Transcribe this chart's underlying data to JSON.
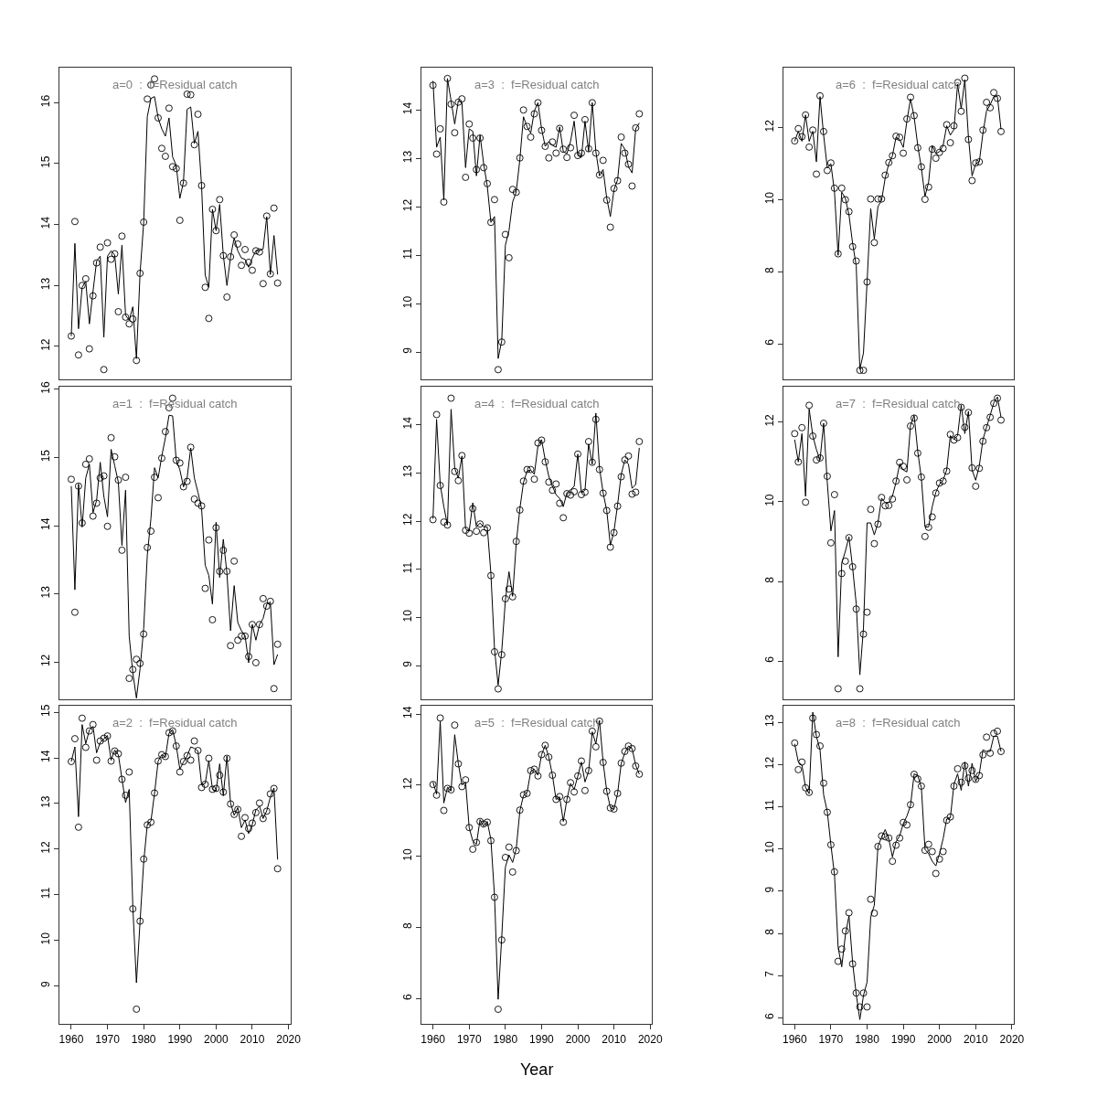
{
  "chart_data": [
    {
      "type": "scatter",
      "title": "a=0  :  f=Residual catch",
      "x": [
        1960,
        1961,
        1962,
        1963,
        1964,
        1965,
        1966,
        1967,
        1968,
        1969,
        1970,
        1971,
        1972,
        1973,
        1974,
        1975,
        1976,
        1977,
        1978,
        1979,
        1980,
        1981,
        1982,
        1983,
        1984,
        1985,
        1986,
        1987,
        1988,
        1989,
        1990,
        1991,
        1992,
        1993,
        1994,
        1995,
        1996,
        1997,
        1998,
        1999,
        2000,
        2001,
        2002,
        2003,
        2004,
        2005,
        2006,
        2007,
        2008,
        2009,
        2010,
        2011,
        2012,
        2013,
        2014,
        2015,
        2016,
        2017
      ],
      "xlim": [
        1956.8,
        2020.5
      ],
      "ylim": [
        11.46,
        16.58
      ],
      "yticks": [
        12,
        13,
        14,
        15,
        16
      ],
      "tick_labels": "y",
      "series": [
        {
          "marker": "circle",
          "color": "#000000",
          "values": [
            12.17,
            14.05,
            11.86,
            13.0,
            13.11,
            11.96,
            12.83,
            13.37,
            13.63,
            11.62,
            13.7,
            13.43,
            13.52,
            12.57,
            13.81,
            12.48,
            12.37,
            12.45,
            11.77,
            13.2,
            14.04,
            16.06,
            16.29,
            16.39,
            15.75,
            15.25,
            15.12,
            15.91,
            14.95,
            14.92,
            14.07,
            14.68,
            16.14,
            16.13,
            15.31,
            15.81,
            14.64,
            12.97,
            12.46,
            14.25,
            13.9,
            14.41,
            13.49,
            12.81,
            13.47,
            13.83,
            13.68,
            13.33,
            13.59,
            13.38,
            13.25,
            13.57,
            13.55,
            13.03,
            14.14,
            13.19,
            14.27,
            13.04
          ]
        },
        {
          "type": "line",
          "color": "#000000",
          "values": [
            12.17,
            13.69,
            12.29,
            12.97,
            13.07,
            12.37,
            12.9,
            13.4,
            13.48,
            12.15,
            13.48,
            13.57,
            13.5,
            12.86,
            13.66,
            12.51,
            12.43,
            12.65,
            11.8,
            13.2,
            14.03,
            15.77,
            16.07,
            16.1,
            15.75,
            15.57,
            15.45,
            15.75,
            15.11,
            14.97,
            14.43,
            14.7,
            15.89,
            15.93,
            15.33,
            15.53,
            14.63,
            13.17,
            12.97,
            14.25,
            13.9,
            14.33,
            13.5,
            13.0,
            13.47,
            13.78,
            13.57,
            13.45,
            13.43,
            13.3,
            13.45,
            13.57,
            13.57,
            13.6,
            14.13,
            13.18,
            13.82,
            13.18
          ]
        }
      ]
    },
    {
      "type": "scatter",
      "title": "a=3  :  f=Residual catch",
      "x": [
        1960,
        1961,
        1962,
        1963,
        1964,
        1965,
        1966,
        1967,
        1968,
        1969,
        1970,
        1971,
        1972,
        1973,
        1974,
        1975,
        1976,
        1977,
        1978,
        1979,
        1980,
        1981,
        1982,
        1983,
        1984,
        1985,
        1986,
        1987,
        1988,
        1989,
        1990,
        1991,
        1992,
        1993,
        1994,
        1995,
        1996,
        1997,
        1998,
        1999,
        2000,
        2001,
        2002,
        2003,
        2004,
        2005,
        2006,
        2007,
        2008,
        2009,
        2010,
        2011,
        2012,
        2013,
        2014,
        2015,
        2016,
        2017
      ],
      "xlim": [
        1956.8,
        2020.5
      ],
      "ylim": [
        8.44,
        14.88
      ],
      "yticks": [
        9,
        10,
        11,
        12,
        13,
        14
      ],
      "tick_labels": "y",
      "series": [
        {
          "marker": "circle",
          "color": "#000000",
          "values": [
            14.51,
            13.09,
            13.61,
            12.1,
            14.65,
            14.12,
            13.53,
            14.16,
            14.23,
            12.61,
            13.71,
            13.42,
            12.77,
            13.42,
            12.81,
            12.48,
            11.68,
            12.15,
            8.64,
            9.21,
            11.43,
            10.95,
            12.36,
            12.3,
            13.01,
            14.0,
            13.66,
            13.44,
            13.92,
            14.15,
            13.58,
            13.25,
            13.01,
            13.34,
            13.11,
            13.62,
            13.19,
            13.02,
            13.22,
            13.89,
            13.06,
            13.11,
            13.8,
            13.2,
            14.15,
            13.11,
            12.66,
            12.96,
            12.14,
            11.58,
            12.38,
            12.54,
            13.44,
            13.11,
            12.88,
            12.43,
            13.63,
            13.92
          ]
        },
        {
          "type": "line",
          "color": "#000000",
          "values": [
            14.6,
            13.23,
            13.44,
            12.14,
            14.65,
            14.19,
            13.71,
            14.19,
            14.15,
            12.81,
            13.61,
            13.56,
            12.64,
            13.48,
            12.89,
            12.43,
            11.68,
            11.8,
            8.87,
            9.24,
            11.21,
            11.51,
            12.1,
            12.31,
            12.98,
            13.86,
            13.65,
            13.52,
            13.98,
            14.15,
            13.61,
            13.25,
            13.35,
            13.27,
            13.23,
            13.65,
            13.14,
            13.1,
            13.35,
            13.77,
            13.06,
            13.02,
            13.77,
            13.14,
            14.15,
            13.14,
            12.64,
            12.77,
            12.18,
            11.8,
            12.35,
            12.56,
            13.31,
            13.19,
            12.83,
            12.7,
            13.61,
            13.73
          ]
        }
      ]
    },
    {
      "type": "scatter",
      "title": "a=6  :  f=Residual catch",
      "x": [
        1960,
        1961,
        1962,
        1963,
        1964,
        1965,
        1966,
        1967,
        1968,
        1969,
        1970,
        1971,
        1972,
        1973,
        1974,
        1975,
        1976,
        1977,
        1978,
        1979,
        1980,
        1981,
        1982,
        1983,
        1984,
        1985,
        1986,
        1987,
        1988,
        1989,
        1990,
        1991,
        1992,
        1993,
        1994,
        1995,
        1996,
        1997,
        1998,
        1999,
        2000,
        2001,
        2002,
        2003,
        2004,
        2005,
        2006,
        2007,
        2008,
        2009,
        2010,
        2011,
        2012,
        2013,
        2014,
        2015,
        2016,
        2017
      ],
      "xlim": [
        1956.8,
        2020.5
      ],
      "ylim": [
        5.02,
        13.67
      ],
      "yticks": [
        6,
        8,
        10,
        12
      ],
      "tick_labels": "y",
      "series": [
        {
          "marker": "circle",
          "color": "#000000",
          "values": [
            11.63,
            11.97,
            11.75,
            12.35,
            11.46,
            11.93,
            10.71,
            12.88,
            11.89,
            10.81,
            11.02,
            10.32,
            8.5,
            10.32,
            10.0,
            9.67,
            8.7,
            8.3,
            5.27,
            5.27,
            7.72,
            10.02,
            8.81,
            10.02,
            10.02,
            10.68,
            11.03,
            11.22,
            11.76,
            11.73,
            11.29,
            12.24,
            12.84,
            12.33,
            11.44,
            10.91,
            10.01,
            10.35,
            11.4,
            11.15,
            11.31,
            11.42,
            12.08,
            11.58,
            12.05,
            13.25,
            12.45,
            13.37,
            11.67,
            10.53,
            11.02,
            11.05,
            11.93,
            12.7,
            12.55,
            12.97,
            12.81,
            11.89
          ]
        },
        {
          "type": "line",
          "color": "#000000",
          "values": [
            11.62,
            11.9,
            11.62,
            12.35,
            11.62,
            11.9,
            11.05,
            12.86,
            11.79,
            10.88,
            11.0,
            10.21,
            8.46,
            10.21,
            10.04,
            9.58,
            8.79,
            8.17,
            5.3,
            5.75,
            7.72,
            9.75,
            8.91,
            9.81,
            9.98,
            10.6,
            11.0,
            11.22,
            11.73,
            11.67,
            11.45,
            12.18,
            12.8,
            12.29,
            11.5,
            10.88,
            10.09,
            10.49,
            11.5,
            11.28,
            11.33,
            11.5,
            12.05,
            11.79,
            11.95,
            13.2,
            12.52,
            13.33,
            11.73,
            10.66,
            11.0,
            11.05,
            11.84,
            12.46,
            12.63,
            12.86,
            12.86,
            11.95
          ]
        }
      ]
    },
    {
      "type": "scatter",
      "title": "a=1  :  f=Residual catch",
      "x": [
        1960,
        1961,
        1962,
        1963,
        1964,
        1965,
        1966,
        1967,
        1968,
        1969,
        1970,
        1971,
        1972,
        1973,
        1974,
        1975,
        1976,
        1977,
        1978,
        1979,
        1980,
        1981,
        1982,
        1983,
        1984,
        1985,
        1986,
        1987,
        1988,
        1989,
        1990,
        1991,
        1992,
        1993,
        1994,
        1995,
        1996,
        1997,
        1998,
        1999,
        2000,
        2001,
        2002,
        2003,
        2004,
        2005,
        2006,
        2007,
        2008,
        2009,
        2010,
        2011,
        2012,
        2013,
        2014,
        2015,
        2016,
        2017
      ],
      "xlim": [
        1956.8,
        2020.5
      ],
      "ylim": [
        11.45,
        16.04
      ],
      "yticks": [
        12,
        13,
        14,
        15,
        16
      ],
      "tick_labels": "y",
      "series": [
        {
          "marker": "circle",
          "color": "#000000",
          "values": [
            14.68,
            12.73,
            14.58,
            14.04,
            14.9,
            14.98,
            14.14,
            14.33,
            14.7,
            14.73,
            13.99,
            15.29,
            15.01,
            14.67,
            13.64,
            14.71,
            11.76,
            11.89,
            12.04,
            11.98,
            12.41,
            13.68,
            13.92,
            14.71,
            14.41,
            14.99,
            15.38,
            15.73,
            15.87,
            14.96,
            14.92,
            14.57,
            14.65,
            15.15,
            14.39,
            14.33,
            14.29,
            13.08,
            13.79,
            12.62,
            13.97,
            13.33,
            13.64,
            13.33,
            12.24,
            13.48,
            12.32,
            12.38,
            12.38,
            12.08,
            12.55,
            11.99,
            12.55,
            12.93,
            12.82,
            12.89,
            11.61,
            12.26
          ]
        },
        {
          "type": "line",
          "color": "#000000",
          "values": [
            14.58,
            13.06,
            14.61,
            13.98,
            14.7,
            14.9,
            14.19,
            14.37,
            14.93,
            14.43,
            14.13,
            15.12,
            14.88,
            14.64,
            13.71,
            14.52,
            12.38,
            11.84,
            11.47,
            11.9,
            12.49,
            13.57,
            14.1,
            14.85,
            14.7,
            15.02,
            15.29,
            15.62,
            15.61,
            14.96,
            14.82,
            14.57,
            14.7,
            15.14,
            14.7,
            14.49,
            14.25,
            13.42,
            13.27,
            12.85,
            14.05,
            13.24,
            13.8,
            13.3,
            12.46,
            13.12,
            12.58,
            12.46,
            12.39,
            11.99,
            12.55,
            12.32,
            12.55,
            12.64,
            12.85,
            12.88,
            11.96,
            12.11
          ]
        }
      ]
    },
    {
      "type": "scatter",
      "title": "a=4  :  f=Residual catch",
      "x": [
        1960,
        1961,
        1962,
        1963,
        1964,
        1965,
        1966,
        1967,
        1968,
        1969,
        1970,
        1971,
        1972,
        1973,
        1974,
        1975,
        1976,
        1977,
        1978,
        1979,
        1980,
        1981,
        1982,
        1983,
        1984,
        1985,
        1986,
        1987,
        1988,
        1989,
        1990,
        1991,
        1992,
        1993,
        1994,
        1995,
        1996,
        1997,
        1998,
        1999,
        2000,
        2001,
        2002,
        2003,
        2004,
        2005,
        2006,
        2007,
        2008,
        2009,
        2010,
        2011,
        2012,
        2013,
        2014,
        2015,
        2016,
        2017
      ],
      "xlim": [
        1956.8,
        2020.5
      ],
      "ylim": [
        8.3,
        14.79
      ],
      "yticks": [
        9,
        10,
        11,
        12,
        13,
        14
      ],
      "tick_labels": "y",
      "series": [
        {
          "marker": "circle",
          "color": "#000000",
          "values": [
            12.03,
            14.21,
            12.74,
            11.98,
            11.92,
            14.55,
            13.03,
            12.84,
            13.36,
            11.81,
            11.75,
            12.26,
            11.79,
            11.94,
            11.76,
            11.86,
            10.87,
            9.29,
            8.52,
            9.23,
            10.39,
            10.59,
            10.43,
            11.58,
            12.23,
            12.83,
            13.07,
            13.07,
            12.87,
            13.62,
            13.68,
            13.23,
            12.81,
            12.64,
            12.77,
            12.37,
            12.07,
            12.57,
            12.54,
            12.61,
            13.39,
            12.55,
            12.6,
            13.65,
            13.22,
            14.11,
            13.07,
            12.58,
            12.22,
            11.46,
            11.76,
            12.31,
            12.92,
            13.27,
            13.35,
            12.56,
            12.6,
            13.65
          ]
        },
        {
          "type": "line",
          "color": "#000000",
          "values": [
            12.05,
            14.11,
            12.76,
            12.3,
            11.92,
            14.32,
            13.1,
            12.89,
            13.35,
            11.84,
            11.79,
            12.38,
            11.88,
            11.96,
            11.88,
            11.88,
            10.91,
            9.35,
            8.6,
            9.31,
            10.36,
            10.95,
            10.44,
            11.54,
            12.26,
            12.8,
            13.04,
            13.06,
            12.97,
            13.56,
            13.69,
            13.27,
            12.93,
            12.72,
            12.55,
            12.47,
            12.3,
            12.59,
            12.65,
            12.72,
            13.39,
            12.59,
            12.64,
            13.6,
            13.18,
            14.24,
            13.1,
            12.59,
            12.22,
            11.5,
            11.79,
            12.34,
            12.97,
            13.27,
            13.18,
            12.68,
            12.76,
            13.52
          ]
        }
      ]
    },
    {
      "type": "scatter",
      "title": "a=7  :  f=Residual catch",
      "x": [
        1960,
        1961,
        1962,
        1963,
        1964,
        1965,
        1966,
        1967,
        1968,
        1969,
        1970,
        1971,
        1972,
        1973,
        1974,
        1975,
        1976,
        1977,
        1978,
        1979,
        1980,
        1981,
        1982,
        1983,
        1984,
        1985,
        1986,
        1987,
        1988,
        1989,
        1990,
        1991,
        1992,
        1993,
        1994,
        1995,
        1996,
        1997,
        1998,
        1999,
        2000,
        2001,
        2002,
        2003,
        2004,
        2005,
        2006,
        2007,
        2008,
        2009,
        2010,
        2011,
        2012,
        2013,
        2014,
        2015,
        2016,
        2017
      ],
      "xlim": [
        1956.8,
        2020.5
      ],
      "ylim": [
        5.04,
        12.89
      ],
      "yticks": [
        6,
        8,
        10,
        12
      ],
      "tick_labels": "y",
      "series": [
        {
          "marker": "circle",
          "color": "#000000",
          "values": [
            11.71,
            11.0,
            11.86,
            9.99,
            12.42,
            11.65,
            11.05,
            11.1,
            11.97,
            10.64,
            8.97,
            10.18,
            5.31,
            8.2,
            8.51,
            9.1,
            8.37,
            7.31,
            5.31,
            6.68,
            7.23,
            9.81,
            8.95,
            9.44,
            10.11,
            9.9,
            9.91,
            10.07,
            10.52,
            10.99,
            10.89,
            10.55,
            11.9,
            12.1,
            11.22,
            10.62,
            9.13,
            9.36,
            9.62,
            10.22,
            10.47,
            10.52,
            10.77,
            11.69,
            11.55,
            11.61,
            12.37,
            11.87,
            12.24,
            10.85,
            10.39,
            10.84,
            11.52,
            11.86,
            12.12,
            12.47,
            12.6,
            12.05
          ]
        },
        {
          "type": "line",
          "color": "#000000",
          "values": [
            11.56,
            11.0,
            11.71,
            10.14,
            12.33,
            11.66,
            11.31,
            11.05,
            11.97,
            10.49,
            9.27,
            9.78,
            6.11,
            8.46,
            8.76,
            9.12,
            8.35,
            7.44,
            5.66,
            6.83,
            9.47,
            9.47,
            9.17,
            9.47,
            10.09,
            9.98,
            9.98,
            10.14,
            10.49,
            10.95,
            10.8,
            10.75,
            11.92,
            12.17,
            11.26,
            10.59,
            9.37,
            9.37,
            9.88,
            10.24,
            10.44,
            10.54,
            10.8,
            11.66,
            11.56,
            11.66,
            12.43,
            11.71,
            12.27,
            10.8,
            10.54,
            10.9,
            11.56,
            11.87,
            12.17,
            12.48,
            12.63,
            12.12
          ]
        }
      ]
    },
    {
      "type": "scatter",
      "title": "a=2  :  f=Residual catch",
      "x": [
        1960,
        1961,
        1962,
        1963,
        1964,
        1965,
        1966,
        1967,
        1968,
        1969,
        1970,
        1971,
        1972,
        1973,
        1974,
        1975,
        1976,
        1977,
        1978,
        1979,
        1980,
        1981,
        1982,
        1983,
        1984,
        1985,
        1986,
        1987,
        1988,
        1989,
        1990,
        1991,
        1992,
        1993,
        1994,
        1995,
        1996,
        1997,
        1998,
        1999,
        2000,
        2001,
        2002,
        2003,
        2004,
        2005,
        2006,
        2007,
        2008,
        2009,
        2010,
        2011,
        2012,
        2013,
        2014,
        2015,
        2016,
        2017
      ],
      "xlim": [
        1956.8,
        2020.5
      ],
      "xticks": [
        1960,
        1970,
        1980,
        1990,
        2000,
        2010,
        2020
      ],
      "ylim": [
        8.16,
        15.14
      ],
      "yticks": [
        9,
        10,
        11,
        12,
        13,
        14,
        15
      ],
      "series": [
        {
          "marker": "circle",
          "color": "#000000",
          "values": [
            13.92,
            14.42,
            12.48,
            14.87,
            14.23,
            14.59,
            14.73,
            13.95,
            14.37,
            14.43,
            14.48,
            13.93,
            14.15,
            14.09,
            13.53,
            13.18,
            13.69,
            10.69,
            8.49,
            10.42,
            11.78,
            12.53,
            12.59,
            13.23,
            13.93,
            14.07,
            14.03,
            14.55,
            14.59,
            14.26,
            13.69,
            13.92,
            14.05,
            13.95,
            14.37,
            14.16,
            13.35,
            13.42,
            13.99,
            13.31,
            13.33,
            13.62,
            13.25,
            13.99,
            12.99,
            12.76,
            12.87,
            12.28,
            12.69,
            12.45,
            12.57,
            12.8,
            13.01,
            12.67,
            12.83,
            13.21,
            13.33,
            11.57
          ]
        },
        {
          "type": "line",
          "color": "#000000",
          "values": [
            13.92,
            14.24,
            12.71,
            14.73,
            14.31,
            14.61,
            14.69,
            14.11,
            14.34,
            14.41,
            14.49,
            13.95,
            14.17,
            14.07,
            13.54,
            13.02,
            13.31,
            10.74,
            9.07,
            10.41,
            11.71,
            12.54,
            12.61,
            13.22,
            13.93,
            14.07,
            14.01,
            14.54,
            14.62,
            14.27,
            13.75,
            13.91,
            14.04,
            14.24,
            14.21,
            14.15,
            13.41,
            13.44,
            13.94,
            13.31,
            13.27,
            13.87,
            13.17,
            14.04,
            13.01,
            12.74,
            12.91,
            12.47,
            12.64,
            12.34,
            12.54,
            12.86,
            12.94,
            12.67,
            12.84,
            13.14,
            13.34,
            11.77
          ]
        }
      ]
    },
    {
      "type": "scatter",
      "title": "a=5  :  f=Residual catch",
      "xlabel": "Year",
      "x": [
        1960,
        1961,
        1962,
        1963,
        1964,
        1965,
        1966,
        1967,
        1968,
        1969,
        1970,
        1971,
        1972,
        1973,
        1974,
        1975,
        1976,
        1977,
        1978,
        1979,
        1980,
        1981,
        1982,
        1983,
        1984,
        1985,
        1986,
        1987,
        1988,
        1989,
        1990,
        1991,
        1992,
        1993,
        1994,
        1995,
        1996,
        1997,
        1998,
        1999,
        2000,
        2001,
        2002,
        2003,
        2004,
        2005,
        2006,
        2007,
        2008,
        2009,
        2010,
        2011,
        2012,
        2013,
        2014,
        2015,
        2016,
        2017
      ],
      "xlim": [
        1956.8,
        2020.5
      ],
      "xticks": [
        1960,
        1970,
        1980,
        1990,
        2000,
        2010,
        2020
      ],
      "ylim": [
        5.28,
        14.23
      ],
      "yticks": [
        6,
        8,
        10,
        12,
        14
      ],
      "series": [
        {
          "marker": "circle",
          "color": "#000000",
          "values": [
            12.02,
            11.72,
            13.89,
            11.29,
            11.91,
            11.87,
            13.69,
            12.6,
            11.96,
            12.15,
            10.81,
            10.2,
            10.39,
            10.98,
            10.91,
            10.96,
            10.44,
            8.85,
            5.7,
            7.65,
            9.97,
            10.26,
            9.56,
            10.16,
            11.3,
            11.73,
            11.77,
            12.41,
            12.45,
            12.26,
            12.86,
            13.12,
            12.79,
            12.28,
            11.6,
            11.68,
            10.96,
            11.6,
            12.07,
            11.81,
            12.26,
            12.68,
            11.85,
            12.41,
            13.52,
            13.08,
            13.8,
            12.64,
            11.83,
            11.36,
            11.33,
            11.77,
            12.62,
            12.95,
            13.1,
            13.03,
            12.54,
            12.31
          ]
        },
        {
          "type": "line",
          "color": "#000000",
          "values": [
            12.09,
            11.75,
            13.8,
            11.5,
            11.94,
            11.84,
            13.42,
            12.61,
            12.01,
            12.09,
            10.81,
            10.43,
            10.34,
            11.03,
            10.85,
            10.98,
            10.47,
            8.89,
            5.98,
            7.74,
            9.7,
            10.04,
            9.83,
            10.21,
            11.28,
            11.71,
            11.79,
            12.39,
            12.45,
            12.28,
            12.86,
            13.12,
            12.79,
            12.28,
            11.6,
            11.67,
            10.98,
            11.6,
            12.05,
            11.88,
            12.25,
            12.65,
            12.09,
            12.39,
            13.5,
            13.16,
            13.82,
            12.65,
            11.84,
            11.37,
            11.32,
            11.77,
            12.61,
            12.91,
            13.1,
            13.03,
            12.56,
            12.31
          ]
        }
      ]
    },
    {
      "type": "scatter",
      "title": "a=8  :  f=Residual catch",
      "x": [
        1960,
        1961,
        1962,
        1963,
        1964,
        1965,
        1966,
        1967,
        1968,
        1969,
        1970,
        1971,
        1972,
        1973,
        1974,
        1975,
        1976,
        1977,
        1978,
        1979,
        1980,
        1981,
        1982,
        1983,
        1984,
        1985,
        1986,
        1987,
        1988,
        1989,
        1990,
        1991,
        1992,
        1993,
        1994,
        1995,
        1996,
        1997,
        1998,
        1999,
        2000,
        2001,
        2002,
        2003,
        2004,
        2005,
        2006,
        2007,
        2008,
        2009,
        2010,
        2011,
        2012,
        2013,
        2014,
        2015,
        2016,
        2017
      ],
      "xlim": [
        1956.8,
        2020.5
      ],
      "xticks": [
        1960,
        1970,
        1980,
        1990,
        2000,
        2010,
        2020
      ],
      "ylim": [
        5.85,
        13.39
      ],
      "yticks": [
        6,
        7,
        8,
        9,
        10,
        11,
        12,
        13
      ],
      "series": [
        {
          "marker": "circle",
          "color": "#000000",
          "values": [
            12.51,
            11.88,
            12.06,
            11.45,
            11.34,
            13.1,
            12.71,
            12.44,
            11.56,
            10.87,
            10.1,
            9.46,
            7.34,
            7.63,
            8.06,
            8.49,
            7.28,
            6.59,
            6.26,
            6.59,
            6.26,
            8.81,
            8.48,
            10.06,
            10.31,
            10.29,
            10.26,
            9.71,
            10.09,
            10.26,
            10.63,
            10.57,
            11.05,
            11.77,
            11.66,
            11.49,
            9.97,
            10.11,
            9.94,
            9.42,
            9.76,
            9.94,
            10.68,
            10.76,
            11.49,
            11.9,
            11.58,
            11.97,
            11.68,
            11.86,
            11.65,
            11.74,
            12.23,
            12.65,
            12.27,
            12.74,
            12.79,
            12.31
          ]
        },
        {
          "type": "line",
          "color": "#000000",
          "values": [
            12.49,
            12.06,
            11.99,
            11.46,
            11.31,
            13.24,
            12.67,
            12.35,
            11.28,
            10.89,
            10.1,
            9.39,
            7.67,
            7.21,
            7.96,
            8.42,
            7.31,
            6.56,
            5.96,
            6.53,
            6.85,
            8.39,
            8.67,
            10.06,
            10.28,
            10.46,
            10.24,
            9.81,
            10.17,
            10.31,
            10.6,
            10.78,
            11.03,
            11.78,
            11.74,
            11.46,
            9.99,
            9.89,
            9.71,
            9.6,
            9.89,
            10.24,
            10.71,
            10.74,
            11.53,
            11.78,
            11.39,
            12.06,
            11.49,
            12.03,
            11.6,
            11.78,
            12.35,
            12.31,
            12.31,
            12.67,
            12.67,
            12.31
          ]
        }
      ]
    }
  ]
}
